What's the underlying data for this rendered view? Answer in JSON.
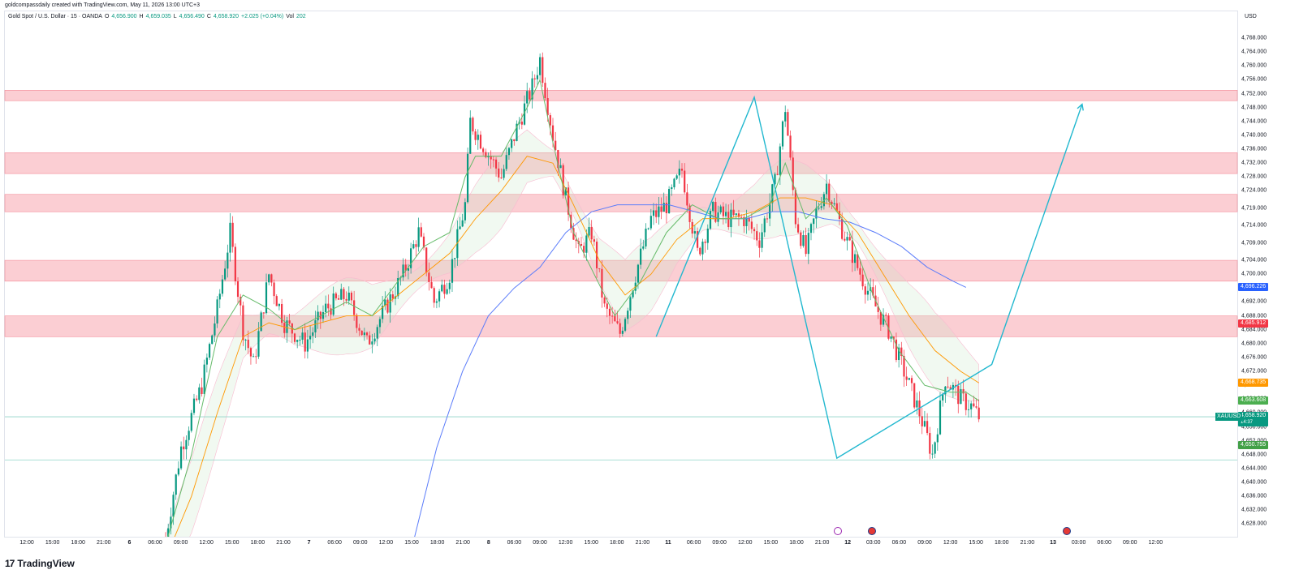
{
  "header": {
    "credit": "goldcompassdaily created with TradingView.com, May 11, 2026 13:00 UTC+3"
  },
  "legend": {
    "symbol": "Gold Spot / U.S. Dollar · 15 · OANDA",
    "open_label": "O",
    "open": "4,656.900",
    "high_label": "H",
    "high": "4,659.035",
    "low_label": "L",
    "low": "4,656.490",
    "close_label": "C",
    "close": "4,658.920",
    "change": "+2.025 (+0.04%)",
    "vol_label": "Vol",
    "vol": "202"
  },
  "price_axis": {
    "currency": "USD",
    "ticks": [
      "4,768.000",
      "4,764.000",
      "4,760.000",
      "4,756.000",
      "4,752.000",
      "4,748.000",
      "4,744.000",
      "4,740.000",
      "4,736.000",
      "4,732.000",
      "4,728.000",
      "4,724.000",
      "4,719.000",
      "4,714.000",
      "4,709.000",
      "4,704.000",
      "4,700.000",
      "4,696.000",
      "4,692.000",
      "4,688.000",
      "4,684.000",
      "4,680.000",
      "4,676.000",
      "4,672.000",
      "4,668.000",
      "4,664.000",
      "4,660.000",
      "4,656.000",
      "4,652.000",
      "4,648.000",
      "4,644.000",
      "4,640.000",
      "4,636.000",
      "4,632.000",
      "4,628.000"
    ],
    "badges": [
      {
        "label": "4,696.226",
        "value": 4696.226,
        "color": "#2962ff"
      },
      {
        "label": "4,685.912",
        "value": 4685.912,
        "color": "#f23645"
      },
      {
        "label": "4,668.735",
        "value": 4668.735,
        "color": "#ff9800"
      },
      {
        "label": "4,663.608",
        "value": 4663.608,
        "color": "#4caf50"
      },
      {
        "label": "4,650.755",
        "value": 4650.755,
        "color": "#43a047"
      }
    ],
    "last_price": {
      "symbol": "XAUUSD",
      "label": "4,658.920",
      "value": 4658.92,
      "countdown": "14:37",
      "color": "#089981"
    }
  },
  "time_axis": {
    "ticks": [
      "12:00",
      "15:00",
      "18:00",
      "21:00",
      "6",
      "06:00",
      "09:00",
      "12:00",
      "15:00",
      "18:00",
      "21:00",
      "7",
      "06:00",
      "09:00",
      "12:00",
      "15:00",
      "18:00",
      "21:00",
      "8",
      "06:00",
      "09:00",
      "12:00",
      "15:00",
      "18:00",
      "21:00",
      "11",
      "06:00",
      "09:00",
      "12:00",
      "15:00",
      "18:00",
      "21:00",
      "12",
      "03:00",
      "06:00",
      "09:00",
      "12:00",
      "15:00",
      "18:00",
      "21:00",
      "13",
      "03:00",
      "06:00",
      "09:00",
      "12:00"
    ]
  },
  "footer": {
    "logo_text": "TradingView",
    "logo_mark": "17"
  },
  "icons": {
    "events": [
      "lightning-event-icon",
      "us-flag-event-icon",
      "us-flag-event-icon"
    ]
  },
  "chart_data": {
    "type": "candlestick",
    "title": "Gold Spot / U.S. Dollar · 15 · OANDA",
    "ylim": [
      4626,
      4772
    ],
    "y_unit": "USD",
    "candle_count": 260,
    "close_path": [
      [
        0,
        4624
      ],
      [
        6,
        4650
      ],
      [
        14,
        4668
      ],
      [
        20,
        4690
      ],
      [
        25,
        4712
      ],
      [
        30,
        4684
      ],
      [
        34,
        4674
      ],
      [
        40,
        4700
      ],
      [
        46,
        4686
      ],
      [
        54,
        4680
      ],
      [
        62,
        4690
      ],
      [
        70,
        4694
      ],
      [
        78,
        4680
      ],
      [
        85,
        4690
      ],
      [
        92,
        4700
      ],
      [
        98,
        4712
      ],
      [
        104,
        4692
      ],
      [
        110,
        4700
      ],
      [
        116,
        4720
      ],
      [
        118,
        4744
      ],
      [
        124,
        4736
      ],
      [
        130,
        4728
      ],
      [
        136,
        4742
      ],
      [
        142,
        4754
      ],
      [
        145,
        4762
      ],
      [
        150,
        4740
      ],
      [
        155,
        4722
      ],
      [
        160,
        4706
      ],
      [
        165,
        4712
      ],
      [
        170,
        4690
      ],
      [
        176,
        4683
      ],
      [
        182,
        4700
      ],
      [
        188,
        4716
      ],
      [
        194,
        4720
      ],
      [
        200,
        4730
      ],
      [
        206,
        4706
      ],
      [
        212,
        4718
      ],
      [
        218,
        4716
      ],
      [
        224,
        4716
      ],
      [
        230,
        4710
      ],
      [
        236,
        4726
      ],
      [
        240,
        4748
      ],
      [
        244,
        4716
      ],
      [
        248,
        4706
      ],
      [
        252,
        4718
      ],
      [
        256,
        4726
      ],
      [
        262,
        4713
      ],
      [
        268,
        4702
      ],
      [
        274,
        4692
      ],
      [
        280,
        4684
      ],
      [
        286,
        4672
      ],
      [
        292,
        4660
      ],
      [
        297,
        4648
      ],
      [
        302,
        4670
      ],
      [
        308,
        4664
      ],
      [
        312,
        4662
      ],
      [
        315,
        4658.9
      ]
    ],
    "ma_fast_path": [
      [
        0,
        4622
      ],
      [
        10,
        4648
      ],
      [
        20,
        4682
      ],
      [
        30,
        4694
      ],
      [
        40,
        4690
      ],
      [
        50,
        4684
      ],
      [
        60,
        4688
      ],
      [
        70,
        4692
      ],
      [
        80,
        4688
      ],
      [
        90,
        4698
      ],
      [
        100,
        4708
      ],
      [
        110,
        4712
      ],
      [
        116,
        4728
      ],
      [
        120,
        4734
      ],
      [
        130,
        4734
      ],
      [
        140,
        4748
      ],
      [
        145,
        4756
      ],
      [
        150,
        4738
      ],
      [
        158,
        4712
      ],
      [
        166,
        4700
      ],
      [
        174,
        4688
      ],
      [
        184,
        4698
      ],
      [
        194,
        4712
      ],
      [
        204,
        4720
      ],
      [
        214,
        4716
      ],
      [
        224,
        4716
      ],
      [
        234,
        4720
      ],
      [
        240,
        4732
      ],
      [
        248,
        4716
      ],
      [
        256,
        4722
      ],
      [
        264,
        4714
      ],
      [
        274,
        4694
      ],
      [
        284,
        4678
      ],
      [
        294,
        4668
      ],
      [
        304,
        4666
      ],
      [
        310,
        4666
      ],
      [
        315,
        4663.6
      ]
    ],
    "ma_mid_path": [
      [
        0,
        4618
      ],
      [
        10,
        4636
      ],
      [
        20,
        4660
      ],
      [
        30,
        4682
      ],
      [
        40,
        4686
      ],
      [
        50,
        4684
      ],
      [
        60,
        4686
      ],
      [
        70,
        4688
      ],
      [
        80,
        4688
      ],
      [
        90,
        4694
      ],
      [
        100,
        4700
      ],
      [
        110,
        4706
      ],
      [
        120,
        4716
      ],
      [
        130,
        4724
      ],
      [
        140,
        4734
      ],
      [
        150,
        4732
      ],
      [
        158,
        4720
      ],
      [
        168,
        4704
      ],
      [
        178,
        4694
      ],
      [
        188,
        4700
      ],
      [
        198,
        4710
      ],
      [
        208,
        4716
      ],
      [
        218,
        4716
      ],
      [
        228,
        4718
      ],
      [
        238,
        4722
      ],
      [
        248,
        4722
      ],
      [
        258,
        4720
      ],
      [
        268,
        4712
      ],
      [
        278,
        4700
      ],
      [
        288,
        4688
      ],
      [
        298,
        4678
      ],
      [
        308,
        4672
      ],
      [
        315,
        4668.7
      ]
    ],
    "ma_slow_path": [
      [
        95,
        4620
      ],
      [
        105,
        4650
      ],
      [
        115,
        4672
      ],
      [
        125,
        4688
      ],
      [
        135,
        4696
      ],
      [
        145,
        4702
      ],
      [
        155,
        4712
      ],
      [
        165,
        4718
      ],
      [
        175,
        4720
      ],
      [
        185,
        4720
      ],
      [
        195,
        4720
      ],
      [
        205,
        4718
      ],
      [
        215,
        4716
      ],
      [
        225,
        4716
      ],
      [
        235,
        4718
      ],
      [
        245,
        4718
      ],
      [
        255,
        4716
      ],
      [
        265,
        4715
      ],
      [
        275,
        4712
      ],
      [
        285,
        4708
      ],
      [
        295,
        4702
      ],
      [
        305,
        4698
      ],
      [
        310,
        4696.2
      ]
    ],
    "resistance_zones": [
      [
        4750,
        4753
      ],
      [
        4729,
        4735
      ],
      [
        4718,
        4723
      ],
      [
        4698,
        4704
      ],
      [
        4682,
        4688
      ]
    ],
    "horizontal_lines": [
      4658.92,
      4646.5
    ],
    "drawn_path_points": [
      [
        190,
        4682
      ],
      [
        228,
        4751
      ],
      [
        260,
        4647
      ],
      [
        320,
        4674
      ],
      [
        355,
        4749
      ]
    ]
  }
}
